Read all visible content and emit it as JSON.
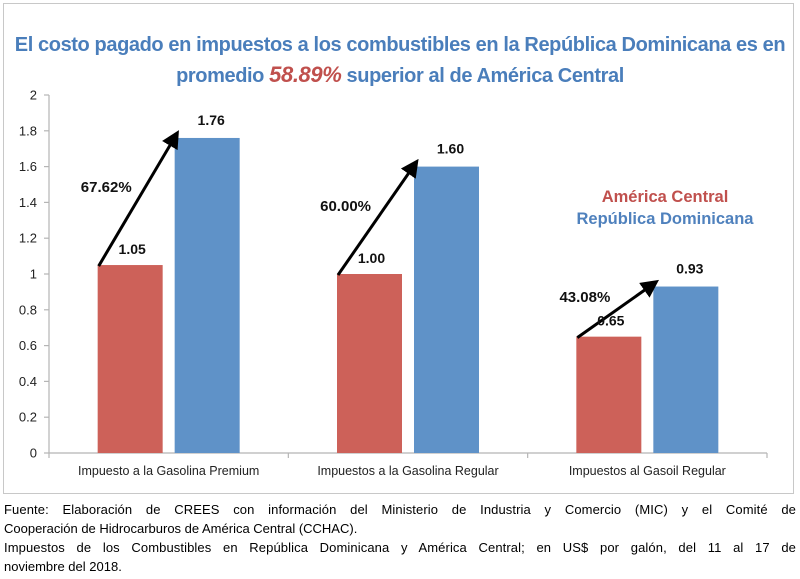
{
  "title": {
    "before": "El costo pagado en impuestos a los combustibles en la República Dominicana es en",
    "line2_prefix": "promedio ",
    "highlight": "58.89%",
    "line2_suffix": " superior al de América Central"
  },
  "chart_data": {
    "type": "bar",
    "title": "El costo pagado en impuestos a los combustibles en la República Dominicana es en promedio 58.89% superior al de América Central",
    "xlabel": "",
    "ylabel": "",
    "ylim": [
      0,
      2
    ],
    "yticks": [
      0,
      0.2,
      0.4,
      0.6,
      0.8,
      1,
      1.2,
      1.4,
      1.6,
      1.8,
      2
    ],
    "ytick_labels": [
      "0",
      "0.2",
      "0.4",
      "0.6",
      "0.8",
      "1",
      "1.2",
      "1.4",
      "1.6",
      "1.8",
      "2"
    ],
    "grid": false,
    "legend_position": "right",
    "categories": [
      "Impuesto a la Gasolina Premium",
      "Impuestos a la Gasolina Regular",
      "Impuestos al Gasoil Regular"
    ],
    "series": [
      {
        "name": "América Central",
        "color": "#cd6159",
        "values": [
          1.05,
          1.0,
          0.65
        ],
        "labels": [
          "1.05",
          "1.00",
          "0.65"
        ]
      },
      {
        "name": "República Dominicana",
        "color": "#5f92c8",
        "values": [
          1.76,
          1.6,
          0.93
        ],
        "labels": [
          "1.76",
          "1.60",
          "0.93"
        ]
      }
    ],
    "annotations": [
      {
        "category": 0,
        "text": "67.62%"
      },
      {
        "category": 1,
        "text": "60.00%"
      },
      {
        "category": 2,
        "text": "43.08%"
      }
    ]
  },
  "legend": {
    "items": [
      {
        "label": "América Central",
        "color": "#c0504d"
      },
      {
        "label": "República Dominicana",
        "color": "#4f81bd"
      }
    ]
  },
  "footer": {
    "line1": "Fuente: Elaboración de CREES con información del Ministerio de Industria y Comercio (MIC) y el Comité de",
    "line2": "Cooperación de Hidrocarburos de América Central (CCHAC).",
    "line3": "Impuestos de los Combustibles en República Dominicana y América Central; en US$ por galón, del 11 al 17 de",
    "line4": "noviembre del 2018."
  }
}
